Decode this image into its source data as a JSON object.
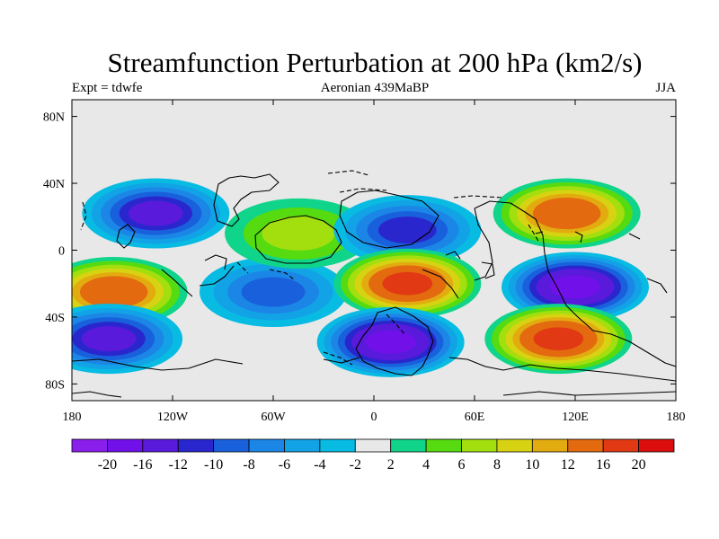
{
  "title": "Streamfunction Perturbation at 200 hPa (km2/s)",
  "subtitle_left": "Expt = tdwfe",
  "subtitle_center": "Aeronian 439MaBP",
  "subtitle_right": "JJA",
  "map_data": {
    "type": "contour-fill",
    "projection": "cylindrical-equidistant",
    "lon_range": [
      -180,
      180
    ],
    "lat_range": [
      -90,
      90
    ],
    "x_ticks": [
      {
        "value": -180,
        "label": "180"
      },
      {
        "value": -120,
        "label": "120W"
      },
      {
        "value": -60,
        "label": "60W"
      },
      {
        "value": 0,
        "label": "0"
      },
      {
        "value": 60,
        "label": "60E"
      },
      {
        "value": 120,
        "label": "120E"
      },
      {
        "value": 180,
        "label": "180"
      }
    ],
    "y_ticks": [
      {
        "value": 80,
        "label": "80N"
      },
      {
        "value": 40,
        "label": "40N"
      },
      {
        "value": 0,
        "label": "0"
      },
      {
        "value": -40,
        "label": "40S"
      },
      {
        "value": -80,
        "label": "80S"
      }
    ],
    "features": [
      {
        "name": "high-north-pacific",
        "lon": -130,
        "lat": 22,
        "value": -14
      },
      {
        "name": "high-west-pacific",
        "lon": -155,
        "lat": -25,
        "value": 15
      },
      {
        "name": "high-south-pacific",
        "lon": -158,
        "lat": -53,
        "value": -13
      },
      {
        "name": "high-east-pacific",
        "lon": -60,
        "lat": -25,
        "value": -9
      },
      {
        "name": "high-north-atlantic",
        "lon": -45,
        "lat": 10,
        "value": 7
      },
      {
        "name": "high-central-north",
        "lon": 20,
        "lat": 12,
        "value": -11
      },
      {
        "name": "high-central-tropics",
        "lon": 20,
        "lat": -20,
        "value": 18
      },
      {
        "name": "high-south-atlantic",
        "lon": 10,
        "lat": -55,
        "value": -17
      },
      {
        "name": "high-asia",
        "lon": 115,
        "lat": 22,
        "value": 15
      },
      {
        "name": "high-indian",
        "lon": 120,
        "lat": -22,
        "value": -18
      },
      {
        "name": "high-south-indian",
        "lon": 110,
        "lat": -53,
        "value": 17
      }
    ]
  },
  "colorbar": {
    "colors": [
      "#8a1eeb",
      "#7210ea",
      "#5a1adb",
      "#2a26cd",
      "#1960dc",
      "#1c86e6",
      "#12a2e6",
      "#08bbe3",
      "#e8e8e8",
      "#10d48a",
      "#55db10",
      "#a3de0e",
      "#d8d312",
      "#e2ab10",
      "#e36a0e",
      "#e13914",
      "#dc0d0d"
    ],
    "labels": [
      "-20",
      "-16",
      "-12",
      "-10",
      "-8",
      "-6",
      "-4",
      "-2",
      "2",
      "4",
      "6",
      "8",
      "10",
      "12",
      "16",
      "20"
    ]
  }
}
